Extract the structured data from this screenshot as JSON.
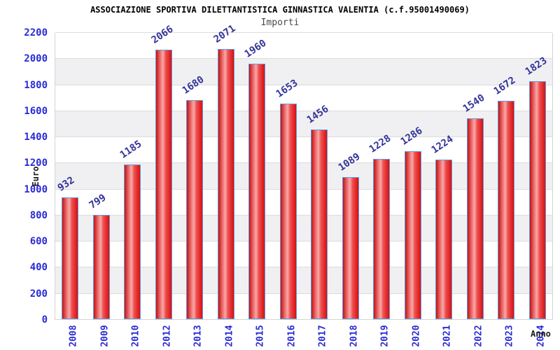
{
  "chart_data": {
    "type": "bar",
    "title": "ASSOCIAZIONE SPORTIVA DILETTANTISTICA GINNASTICA VALENTIA (c.f.95001490069)",
    "subtitle": "Importi",
    "xlabel": "Anno",
    "ylabel": "Euro",
    "categories": [
      "2008",
      "2009",
      "2010",
      "2012",
      "2013",
      "2014",
      "2015",
      "2016",
      "2017",
      "2018",
      "2019",
      "2020",
      "2021",
      "2022",
      "2023",
      "2024"
    ],
    "values": [
      932,
      799,
      1185,
      2066,
      1680,
      2071,
      1960,
      1653,
      1456,
      1089,
      1228,
      1286,
      1224,
      1540,
      1672,
      1823
    ],
    "ylim": [
      0,
      2200
    ],
    "ytick_step": 200,
    "ytick_labels": [
      "0",
      "200",
      "400",
      "600",
      "800",
      "1000",
      "1200",
      "1400",
      "1600",
      "1800",
      "2000",
      "2200"
    ],
    "grid": true,
    "legend_position": "none",
    "bar_value_labels_shown": true,
    "colors": {
      "bar_gradient": [
        "#c41212",
        "#f07878",
        "#f8a8a8",
        "#ee5050",
        "#d90f0f"
      ],
      "bar_border": "#5e9de0",
      "tick_label": "#2a2ad4",
      "value_label": "#333399",
      "band_alt": "#f0f0f2",
      "band_base": "#ffffff",
      "gridline": "#dcdcdc",
      "plot_border": "#d4d4d4",
      "title": "#000000",
      "subtitle": "#4a4a4a",
      "axis_title": "#1a1a1a",
      "background": "#ffffff"
    }
  }
}
